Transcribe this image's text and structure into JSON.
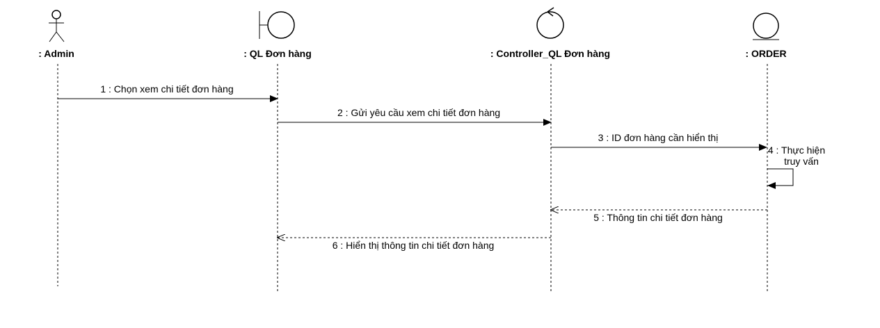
{
  "participants": [
    {
      "id": "admin",
      "type": "actor",
      "label": ": Admin"
    },
    {
      "id": "ui",
      "type": "boundary",
      "label": ": QL Đơn hàng"
    },
    {
      "id": "ctrl",
      "type": "control",
      "label": ": Controller_QL Đơn hàng"
    },
    {
      "id": "order",
      "type": "entity",
      "label": ": ORDER"
    }
  ],
  "messages": [
    {
      "num": 1,
      "from": "admin",
      "to": "ui",
      "kind": "sync",
      "text": "1 : Chọn xem chi tiết đơn hàng"
    },
    {
      "num": 2,
      "from": "ui",
      "to": "ctrl",
      "kind": "sync",
      "text": "2 : Gửi yêu cầu xem chi tiết đơn hàng"
    },
    {
      "num": 3,
      "from": "ctrl",
      "to": "order",
      "kind": "sync",
      "text": "3 : ID đơn hàng cần hiển thị"
    },
    {
      "num": 4,
      "from": "order",
      "to": "order",
      "kind": "self",
      "text_lines": [
        "4 : Thực hiện",
        "truy vấn"
      ]
    },
    {
      "num": 5,
      "from": "order",
      "to": "ctrl",
      "kind": "reply",
      "text": "5 : Thông tin chi tiết đơn hàng"
    },
    {
      "num": 6,
      "from": "ctrl",
      "to": "ui",
      "kind": "reply",
      "text": "6 : Hiển thị thông tin chi tiết đơn hàng"
    }
  ]
}
